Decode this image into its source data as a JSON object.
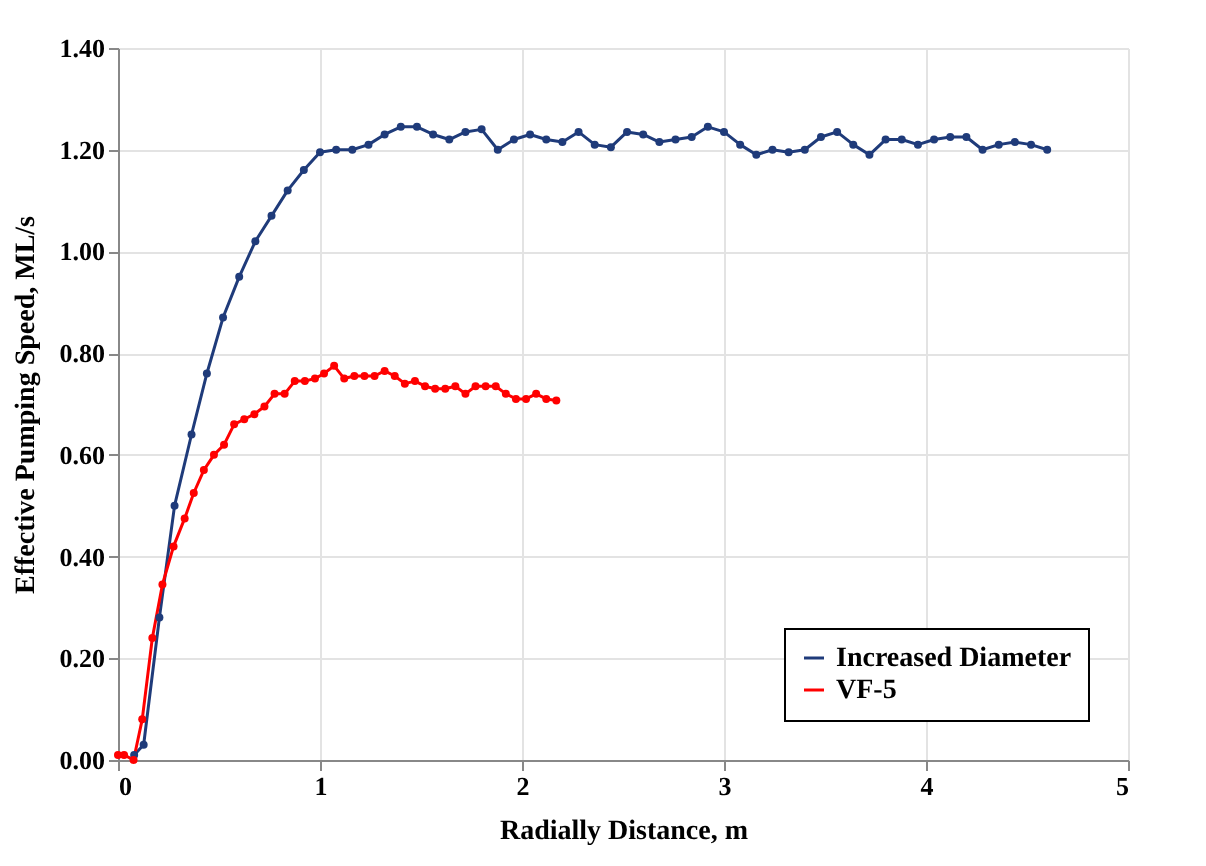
{
  "chart_data": {
    "type": "line",
    "xlabel": "Radially Distance, m",
    "ylabel": "Effective Pumping Speed, ML/s",
    "xlim": [
      0,
      5
    ],
    "xticks": [
      0,
      1,
      2,
      3,
      4,
      5
    ],
    "ylim": [
      0,
      1.4
    ],
    "yticks": [
      {
        "value": 0,
        "label": "0.00"
      },
      {
        "value": 0.2,
        "label": "0.20"
      },
      {
        "value": 0.4,
        "label": "0.40"
      },
      {
        "value": 0.6,
        "label": "0.60"
      },
      {
        "value": 0.8,
        "label": "0.80"
      },
      {
        "value": 1,
        "label": "1.00"
      },
      {
        "value": 1.2,
        "label": "1.20"
      },
      {
        "value": 1.4,
        "label": "1.40"
      }
    ],
    "grid": true,
    "legend": "bottom right",
    "marker": "circle",
    "line_style": "solid",
    "series": [
      {
        "name": "Increased Diameter",
        "color": "#1f3b7a",
        "x": [
          0.08,
          0.127,
          0.205,
          0.28,
          0.364,
          0.44,
          0.52,
          0.6,
          0.68,
          0.76,
          0.84,
          0.92,
          1.0,
          1.08,
          1.16,
          1.24,
          1.32,
          1.4,
          1.48,
          1.56,
          1.64,
          1.72,
          1.8,
          1.88,
          1.96,
          2.04,
          2.12,
          2.2,
          2.28,
          2.36,
          2.44,
          2.52,
          2.6,
          2.68,
          2.76,
          2.84,
          2.92,
          3.0,
          3.08,
          3.16,
          3.24,
          3.32,
          3.4,
          3.48,
          3.56,
          3.64,
          3.72,
          3.8,
          3.88,
          3.96,
          4.04,
          4.12,
          4.2,
          4.28,
          4.36,
          4.44,
          4.52,
          4.6
        ],
        "values": [
          0.01,
          0.03,
          0.28,
          0.5,
          0.64,
          0.76,
          0.87,
          0.95,
          1.02,
          1.07,
          1.12,
          1.16,
          1.195,
          1.2,
          1.2,
          1.21,
          1.23,
          1.245,
          1.245,
          1.23,
          1.22,
          1.235,
          1.24,
          1.2,
          1.22,
          1.23,
          1.22,
          1.215,
          1.235,
          1.21,
          1.205,
          1.235,
          1.23,
          1.215,
          1.22,
          1.225,
          1.245,
          1.235,
          1.21,
          1.19,
          1.2,
          1.195,
          1.2,
          1.225,
          1.235,
          1.21,
          1.19,
          1.22,
          1.22,
          1.21,
          1.22,
          1.225,
          1.225,
          1.2,
          1.21,
          1.215,
          1.21,
          1.2
        ]
      },
      {
        "name": "VF-5",
        "color": "#ff0000",
        "x": [
          0,
          0.03,
          0.077,
          0.12,
          0.17,
          0.22,
          0.275,
          0.33,
          0.375,
          0.425,
          0.475,
          0.525,
          0.575,
          0.625,
          0.675,
          0.725,
          0.775,
          0.825,
          0.875,
          0.925,
          0.975,
          1.02,
          1.07,
          1.12,
          1.17,
          1.22,
          1.27,
          1.32,
          1.37,
          1.42,
          1.47,
          1.52,
          1.57,
          1.62,
          1.67,
          1.72,
          1.77,
          1.82,
          1.87,
          1.92,
          1.97,
          2.02,
          2.07,
          2.12,
          2.17
        ],
        "values": [
          0.01,
          0.01,
          0.0,
          0.08,
          0.24,
          0.345,
          0.42,
          0.475,
          0.525,
          0.57,
          0.6,
          0.62,
          0.66,
          0.67,
          0.68,
          0.695,
          0.72,
          0.72,
          0.745,
          0.745,
          0.75,
          0.76,
          0.775,
          0.75,
          0.755,
          0.755,
          0.755,
          0.765,
          0.755,
          0.74,
          0.745,
          0.735,
          0.73,
          0.73,
          0.735,
          0.72,
          0.735,
          0.735,
          0.735,
          0.72,
          0.71,
          0.71,
          0.72,
          0.71,
          0.707
        ]
      }
    ]
  }
}
